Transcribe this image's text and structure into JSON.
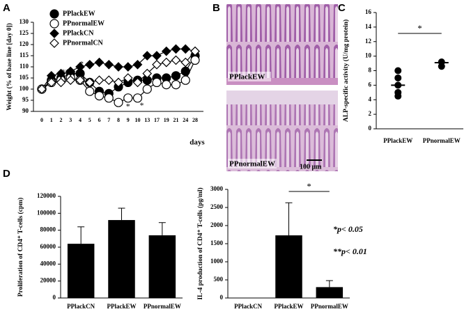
{
  "panel_labels": [
    "A",
    "B",
    "C",
    "D"
  ],
  "images": [
    {
      "label": "PPlackEW"
    },
    {
      "label": "PPnormalEW"
    }
  ],
  "scale_bar": "100 μm",
  "notes": [
    "*p< 0.05",
    "**p< 0.01"
  ],
  "chart_data": [
    {
      "type": "line",
      "ylabel": "Weight (% of base line [day 0])",
      "xlabel": "days",
      "categories": [
        "0",
        "1",
        "2",
        "3",
        "4",
        "5",
        "6",
        "7",
        "8",
        "9",
        "10",
        "13",
        "17",
        "19",
        "21",
        "24",
        "28"
      ],
      "ylim": [
        90,
        130
      ],
      "yticks": [
        90,
        95,
        100,
        105,
        110,
        115,
        120,
        125,
        130
      ],
      "annotations": [
        "**",
        "*",
        "*",
        "*"
      ],
      "series": [
        {
          "name": "PPlackEW",
          "color": "#000000",
          "marker": "filled-circle",
          "values": [
            100,
            104,
            105,
            107,
            107,
            103,
            99,
            98,
            101,
            103,
            104,
            104,
            105,
            105,
            106,
            108,
            115
          ]
        },
        {
          "name": "PPnormalEW",
          "color": "#000000",
          "marker": "open-circle",
          "values": [
            100,
            103,
            104,
            105,
            104,
            99,
            97,
            96,
            94,
            96,
            96,
            100,
            103,
            102,
            102,
            104,
            113
          ]
        },
        {
          "name": "PPlackCN",
          "color": "#000000",
          "marker": "filled-diamond",
          "values": [
            100,
            106,
            107,
            108,
            110,
            111,
            112,
            111,
            110,
            110,
            111,
            115,
            115,
            117,
            118,
            118,
            117
          ]
        },
        {
          "name": "PPnormalCN",
          "color": "#000000",
          "marker": "open-diamond",
          "values": [
            100,
            103,
            103,
            104,
            104,
            103,
            104,
            104,
            103,
            105,
            103,
            107,
            111,
            112,
            113,
            112,
            117
          ]
        }
      ]
    },
    {
      "type": "dot",
      "ylabel": "ALP-specific activity (U/mg protein)",
      "categories": [
        "PPlackEW",
        "PPnormalEW"
      ],
      "ylim": [
        0,
        16
      ],
      "yticks": [
        0,
        2,
        4,
        6,
        8,
        10,
        12,
        14,
        16
      ],
      "points": [
        [
          8,
          7,
          6,
          5,
          4.5
        ],
        [
          9.2,
          8.6
        ]
      ],
      "means": [
        6,
        9.1
      ],
      "significance": "*",
      "color": "#000000"
    },
    {
      "type": "bar",
      "ylabel": "Proliferation of CD4⁺ T-cells (cpm)",
      "categories": [
        "PPlackCN",
        "PPlackEW",
        "PPnormalEW"
      ],
      "ylim": [
        0,
        120000
      ],
      "yticks": [
        0,
        20000,
        40000,
        60000,
        80000,
        100000,
        120000
      ],
      "values": [
        64000,
        92000,
        74000
      ],
      "errors": [
        20000,
        14000,
        15000
      ],
      "color": "#000000"
    },
    {
      "type": "bar",
      "ylabel": "IL-4 production of CD4⁺ T-cells (pg/ml)",
      "categories": [
        "PPlackCN",
        "PPlackEW",
        "PPnormalEW"
      ],
      "ylim": [
        0,
        3000
      ],
      "yticks": [
        0,
        500,
        1000,
        1500,
        2000,
        2500,
        3000
      ],
      "values": [
        0,
        1730,
        300
      ],
      "errors": [
        0,
        900,
        180
      ],
      "significance": "*",
      "color": "#000000"
    }
  ]
}
